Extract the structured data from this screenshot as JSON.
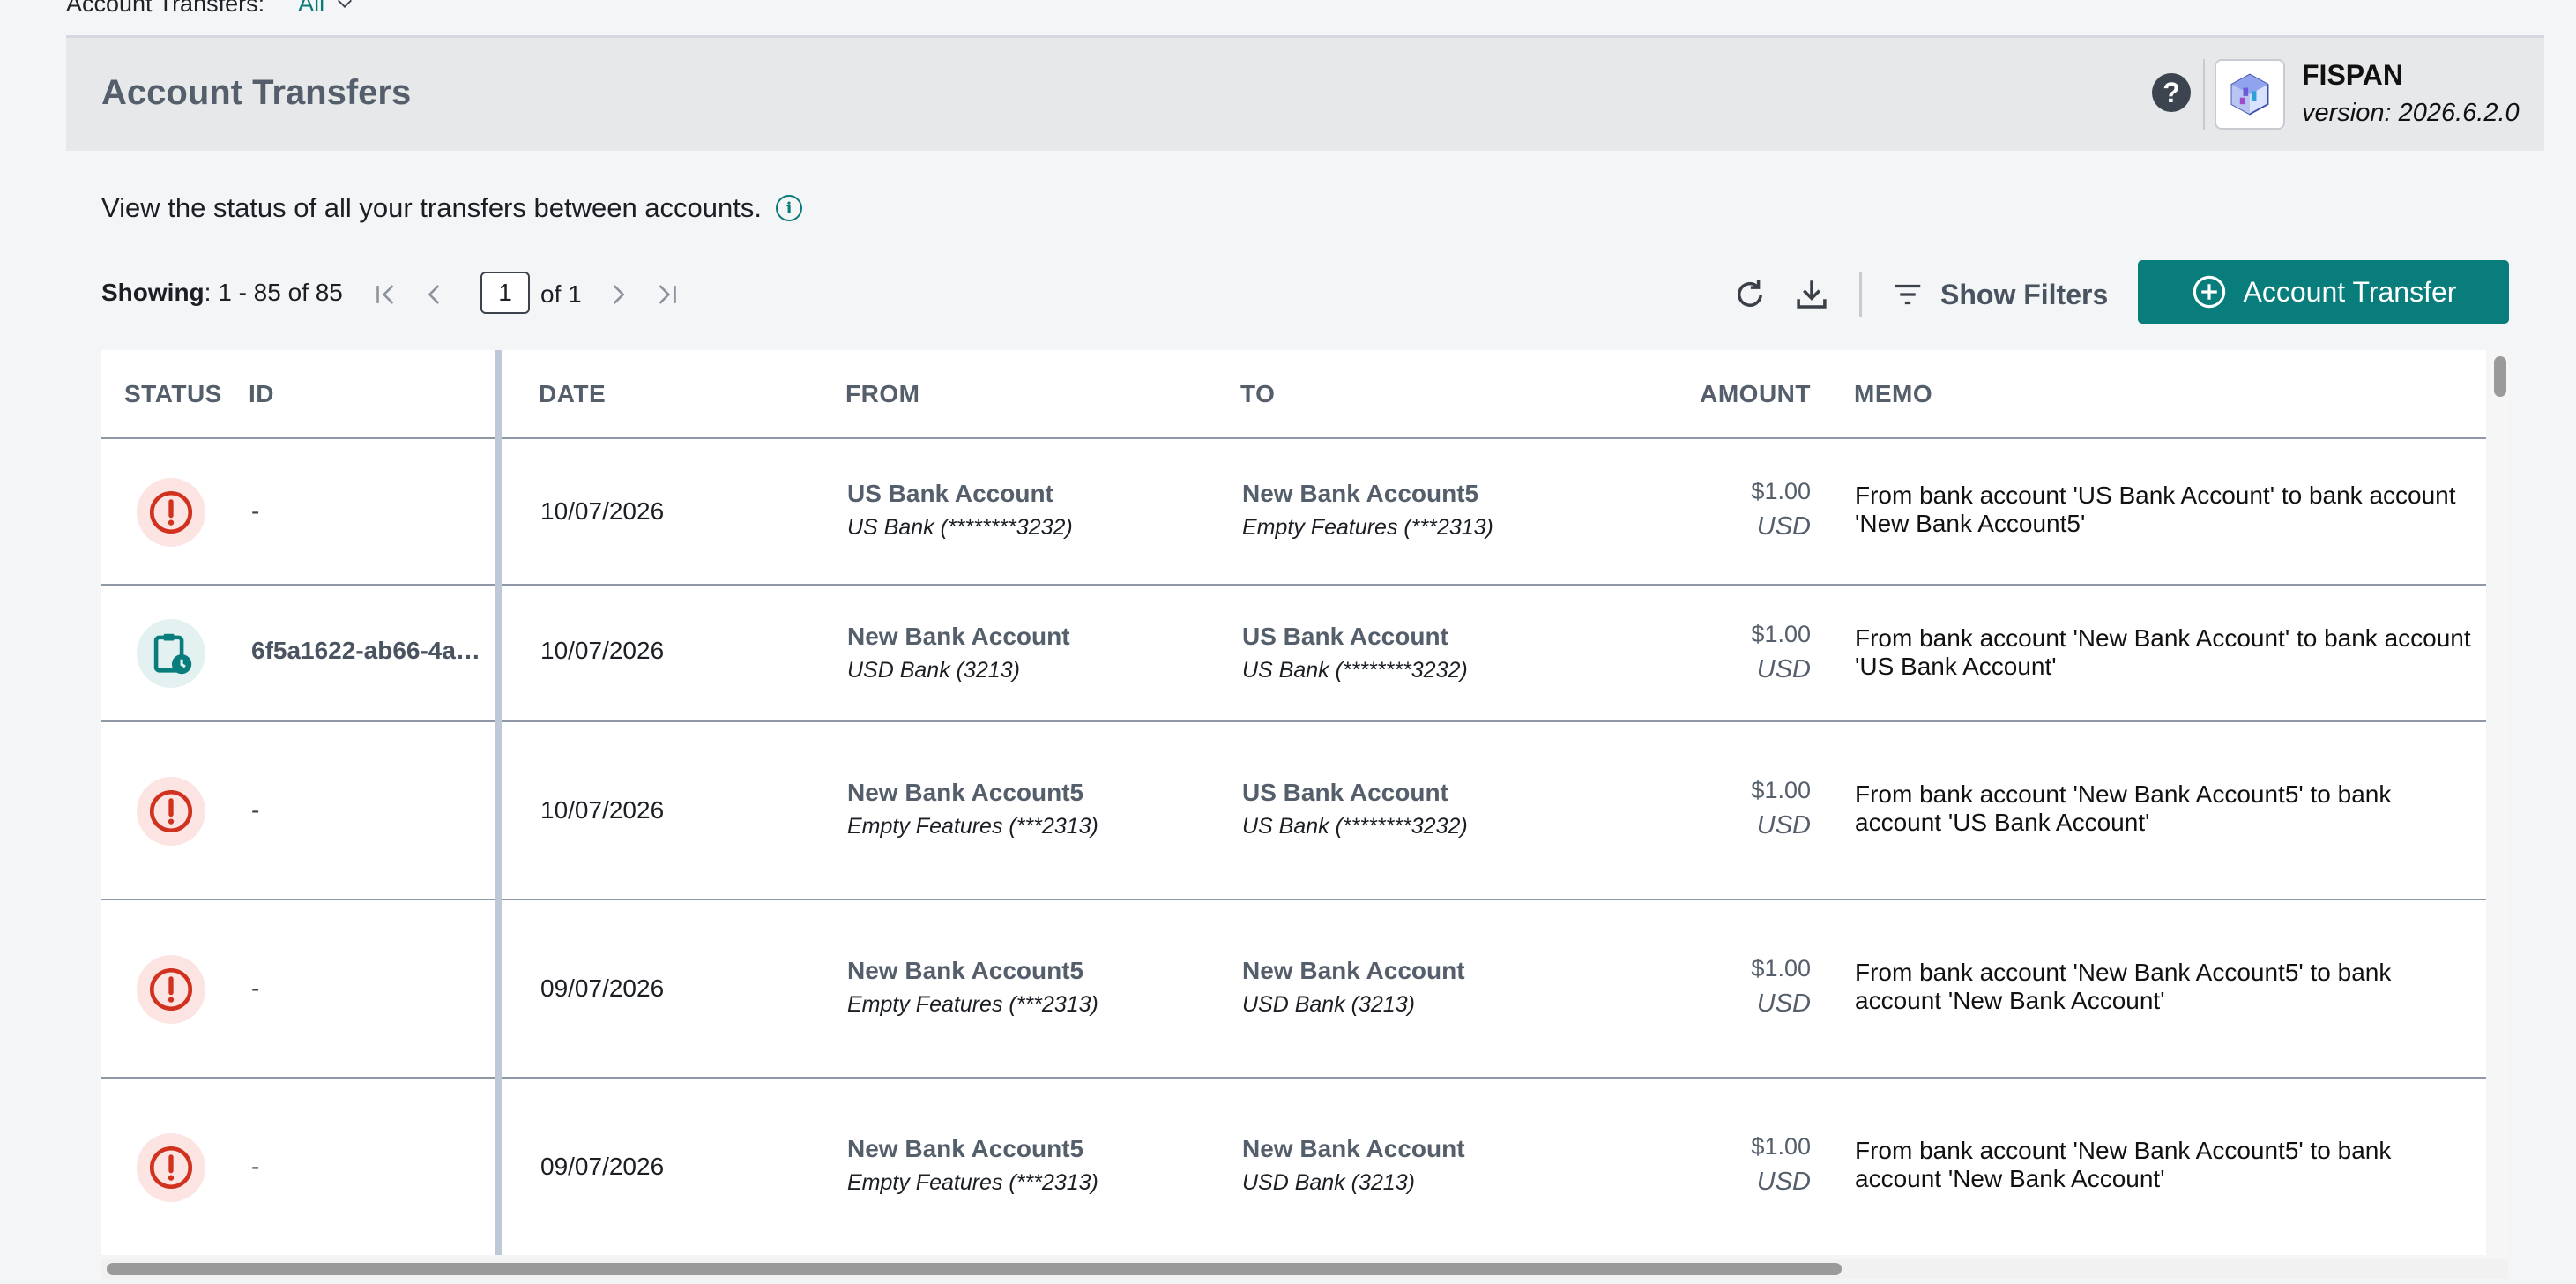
{
  "top_filter": {
    "label": "Account Transfers:",
    "value": "All"
  },
  "header": {
    "title": "Account Transfers",
    "help_label": "?",
    "brand_name": "FISPAN",
    "brand_version": "version: 2026.6.2.0",
    "logo_icon": "cube-logo-icon"
  },
  "description": "View the status of all your transfers between accounts.",
  "toolbar": {
    "showing_label": "Showing",
    "showing_range": ": 1 - 85 of 85",
    "page_value": "1",
    "of_pages": "of 1",
    "show_filters": "Show Filters",
    "new_transfer": "Account Transfer"
  },
  "table": {
    "columns": [
      "STATUS",
      "ID",
      "DATE",
      "FROM",
      "TO",
      "AMOUNT",
      "MEMO"
    ],
    "rows": [
      {
        "status": "error",
        "id": "-",
        "date": "10/07/2026",
        "from_name": "US Bank Account",
        "from_sub": "US Bank (********3232)",
        "to_name": "New Bank Account5",
        "to_sub": "Empty Features (***2313)",
        "amount": "$1.00",
        "currency": "USD",
        "memo": "From bank account 'US Bank Account' to bank account 'New Bank Account5'"
      },
      {
        "status": "pending",
        "id": "6f5a1622-ab66-4a9...",
        "date": "10/07/2026",
        "from_name": "New Bank Account",
        "from_sub": "USD Bank (3213)",
        "to_name": "US Bank Account",
        "to_sub": "US Bank (********3232)",
        "amount": "$1.00",
        "currency": "USD",
        "memo": "From bank account 'New Bank Account' to bank account 'US Bank Account'"
      },
      {
        "status": "error",
        "id": "-",
        "date": "10/07/2026",
        "from_name": "New Bank Account5",
        "from_sub": "Empty Features (***2313)",
        "to_name": "US Bank Account",
        "to_sub": "US Bank (********3232)",
        "amount": "$1.00",
        "currency": "USD",
        "memo": "From bank account 'New Bank Account5' to bank account 'US Bank Account'"
      },
      {
        "status": "error",
        "id": "-",
        "date": "09/07/2026",
        "from_name": "New Bank Account5",
        "from_sub": "Empty Features (***2313)",
        "to_name": "New Bank Account",
        "to_sub": "USD Bank (3213)",
        "amount": "$1.00",
        "currency": "USD",
        "memo": "From bank account 'New Bank Account5' to bank account 'New Bank Account'"
      },
      {
        "status": "error",
        "id": "-",
        "date": "09/07/2026",
        "from_name": "New Bank Account5",
        "from_sub": "Empty Features (***2313)",
        "to_name": "New Bank Account",
        "to_sub": "USD Bank (3213)",
        "amount": "$1.00",
        "currency": "USD",
        "memo": "From bank account 'New Bank Account5' to bank account 'New Bank Account'"
      }
    ]
  },
  "colors": {
    "accent": "#087d7b",
    "error": "#d0321f",
    "header_bg": "#e7e8ea"
  }
}
